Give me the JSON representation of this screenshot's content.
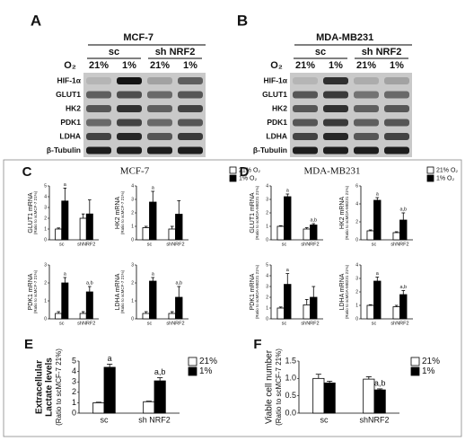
{
  "blots": [
    {
      "label": "A",
      "cell": "MCF-7",
      "groups": [
        "sc",
        "sh NRF2"
      ],
      "o2": "O₂",
      "conditions": [
        "21%",
        "1%",
        "21%",
        "1%"
      ],
      "proteins": [
        "HIF-1α",
        "GLUT1",
        "HK2",
        "PDK1",
        "LDHA",
        "β-Tubulin"
      ]
    },
    {
      "label": "B",
      "cell": "MDA-MB231",
      "groups": [
        "sc",
        "sh NRF2"
      ],
      "o2": "O₂",
      "conditions": [
        "21%",
        "1%",
        "21%",
        "1%"
      ],
      "proteins": [
        "HIF-1α",
        "GLUT1",
        "HK2",
        "PDK1",
        "LDHA",
        "β-Tubulin"
      ]
    }
  ],
  "panels": [
    {
      "label": "C",
      "title": "MCF-7",
      "legend": [
        "21% O₂",
        "1% O₂"
      ]
    },
    {
      "label": "D",
      "title": "MDA-MB231",
      "legend": [
        "21% O₂",
        "1% O₂"
      ]
    },
    {
      "label": "E",
      "legend": [
        "21%",
        "1%"
      ]
    },
    {
      "label": "F",
      "legend": [
        "21%",
        "1%"
      ]
    }
  ],
  "chart_data": [
    {
      "type": "bar",
      "ylabel": "GLUT1 mRNA",
      "ylabel_note": "(Ratio to scMCF-7 21%)",
      "categories": [
        "sc",
        "shNRF2"
      ],
      "ylim": [
        0,
        5
      ],
      "yticks": [
        0,
        1,
        2,
        3,
        4,
        5
      ],
      "series": [
        {
          "color": "#ffffff",
          "values": [
            1.0,
            2.0
          ],
          "errors": [
            0.1,
            0.4
          ],
          "notes": [
            null,
            null
          ]
        },
        {
          "color": "#000000",
          "values": [
            3.6,
            2.4
          ],
          "errors": [
            1.2,
            1.3
          ],
          "notes": [
            "a",
            null
          ]
        }
      ]
    },
    {
      "type": "bar",
      "ylabel": "HK2 mRNA",
      "ylabel_note": "(Ratio to scMCF-7 21%)",
      "categories": [
        "sc",
        "shNRF2"
      ],
      "ylim": [
        0,
        4
      ],
      "yticks": [
        0,
        1,
        2,
        3,
        4
      ],
      "series": [
        {
          "color": "#ffffff",
          "values": [
            0.9,
            0.8
          ],
          "errors": [
            0.1,
            0.2
          ],
          "notes": [
            null,
            null
          ]
        },
        {
          "color": "#000000",
          "values": [
            2.8,
            1.9
          ],
          "errors": [
            0.8,
            1.0
          ],
          "notes": [
            "a",
            null
          ]
        }
      ]
    },
    {
      "type": "bar",
      "ylabel": "PDK1 mRNA",
      "ylabel_note": "(Ratio to scMCF-7 21%)",
      "categories": [
        "sc",
        "shNRF2"
      ],
      "ylim": [
        0,
        3
      ],
      "yticks": [
        0,
        1,
        2,
        3
      ],
      "series": [
        {
          "color": "#ffffff",
          "values": [
            0.3,
            0.3
          ],
          "errors": [
            0.1,
            0.1
          ],
          "notes": [
            null,
            null
          ]
        },
        {
          "color": "#000000",
          "values": [
            2.0,
            1.5
          ],
          "errors": [
            0.3,
            0.3
          ],
          "notes": [
            "a",
            "a,b"
          ]
        }
      ]
    },
    {
      "type": "bar",
      "ylabel": "LDHA mRNA",
      "ylabel_note": "(Ratio to scMCF-7 21%)",
      "categories": [
        "sc",
        "shNRF2"
      ],
      "ylim": [
        0,
        3
      ],
      "yticks": [
        0,
        1,
        2,
        3
      ],
      "series": [
        {
          "color": "#ffffff",
          "values": [
            0.3,
            0.3
          ],
          "errors": [
            0.1,
            0.1
          ],
          "notes": [
            null,
            null
          ]
        },
        {
          "color": "#000000",
          "values": [
            2.1,
            1.2
          ],
          "errors": [
            0.2,
            0.6
          ],
          "notes": [
            "a",
            "a,b"
          ]
        }
      ]
    },
    {
      "type": "bar",
      "ylabel": "GLUT1 mRNA",
      "ylabel_note": "(Ratio to scMDA-MB231 21%)",
      "categories": [
        "sc",
        "shNRF2"
      ],
      "ylim": [
        0,
        4
      ],
      "yticks": [
        0,
        1,
        2,
        3,
        4
      ],
      "series": [
        {
          "color": "#ffffff",
          "values": [
            1.0,
            0.8
          ],
          "errors": [
            0.05,
            0.1
          ],
          "notes": [
            null,
            null
          ]
        },
        {
          "color": "#000000",
          "values": [
            3.2,
            1.1
          ],
          "errors": [
            0.2,
            0.1
          ],
          "notes": [
            "a",
            "a,b"
          ]
        }
      ]
    },
    {
      "type": "bar",
      "ylabel": "HK2 mRNA",
      "ylabel_note": "(Ratio to scMDA-MB231 21%)",
      "categories": [
        "sc",
        "shNRF2"
      ],
      "ylim": [
        0,
        6
      ],
      "yticks": [
        0,
        2,
        4,
        6
      ],
      "series": [
        {
          "color": "#ffffff",
          "values": [
            1.0,
            0.8
          ],
          "errors": [
            0.1,
            0.1
          ],
          "notes": [
            null,
            null
          ]
        },
        {
          "color": "#000000",
          "values": [
            4.4,
            2.2
          ],
          "errors": [
            0.3,
            0.8
          ],
          "notes": [
            "a",
            "a,b"
          ]
        }
      ]
    },
    {
      "type": "bar",
      "ylabel": "PDK1 mRNA",
      "ylabel_note": "(Ratio to scMDA-MB231 21%)",
      "categories": [
        "sc",
        "shNRF2"
      ],
      "ylim": [
        0,
        5
      ],
      "yticks": [
        0,
        1,
        2,
        3,
        4,
        5
      ],
      "series": [
        {
          "color": "#ffffff",
          "values": [
            1.0,
            1.3
          ],
          "errors": [
            0.1,
            0.5
          ],
          "notes": [
            null,
            null
          ]
        },
        {
          "color": "#000000",
          "values": [
            3.2,
            2.0
          ],
          "errors": [
            1.0,
            1.0
          ],
          "notes": [
            "a",
            null
          ]
        }
      ]
    },
    {
      "type": "bar",
      "ylabel": "LDHA mRNA",
      "ylabel_note": "(Ratio to scMDA-MB231 21%)",
      "categories": [
        "sc",
        "shNRF2"
      ],
      "ylim": [
        0,
        4
      ],
      "yticks": [
        0,
        1,
        2,
        3,
        4
      ],
      "series": [
        {
          "color": "#ffffff",
          "values": [
            1.0,
            0.9
          ],
          "errors": [
            0.05,
            0.1
          ],
          "notes": [
            null,
            null
          ]
        },
        {
          "color": "#000000",
          "values": [
            2.8,
            1.8
          ],
          "errors": [
            0.3,
            0.3
          ],
          "notes": [
            "a",
            "a,b"
          ]
        }
      ]
    },
    {
      "type": "bar",
      "ylabel": "Extracellular",
      "ylabel_line2": "Lactate levels",
      "ylabel_note": "(Ratio to scMCF-7 21%)",
      "categories": [
        "sc",
        "sh NRF2"
      ],
      "ylim": [
        0,
        5
      ],
      "yticks": [
        0,
        1,
        2,
        3,
        4,
        5
      ],
      "series": [
        {
          "color": "#ffffff",
          "values": [
            1.0,
            1.1
          ],
          "errors": [
            0.05,
            0.05
          ],
          "notes": [
            null,
            null
          ]
        },
        {
          "color": "#000000",
          "values": [
            4.4,
            3.1
          ],
          "errors": [
            0.3,
            0.3
          ],
          "notes": [
            "a",
            "a,b"
          ]
        }
      ]
    },
    {
      "type": "bar",
      "ylabel": "Viable cell number",
      "ylabel_note": "(Ratio to scMCF-7 21%)",
      "categories": [
        "sc",
        "shNRF2"
      ],
      "ylim": [
        0,
        1.5
      ],
      "yticks": [
        {
          "value": 0,
          "label": "0.0"
        },
        {
          "value": 0.5,
          "label": "0.5"
        },
        {
          "value": 1,
          "label": "1.0"
        },
        {
          "value": 1.5,
          "label": "1.5"
        }
      ],
      "series": [
        {
          "color": "#ffffff",
          "values": [
            1.0,
            0.98
          ],
          "errors": [
            0.12,
            0.07
          ],
          "notes": [
            null,
            null
          ]
        },
        {
          "color": "#000000",
          "values": [
            0.87,
            0.67
          ],
          "errors": [
            0.05,
            0.03
          ],
          "notes": [
            null,
            "a,b"
          ]
        }
      ]
    }
  ]
}
